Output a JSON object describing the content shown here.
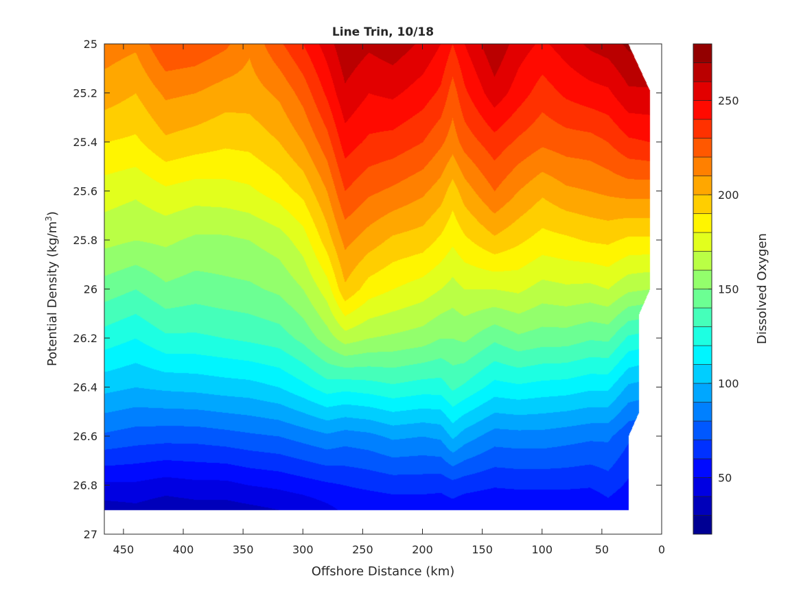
{
  "chart_data": {
    "type": "filled-contour",
    "title": "Line Trin, 10/18",
    "xlabel": "Offshore Distance (km)",
    "ylabel": "Potential Density (kg/m^3)",
    "ylabel_parts": {
      "main": "Potential Density (kg/m",
      "sup": "3",
      "end": ")"
    },
    "xlim": [
      466,
      0
    ],
    "ylim": [
      25,
      27
    ],
    "x_reversed": true,
    "y_reversed": true,
    "xticks": [
      450,
      400,
      350,
      300,
      250,
      200,
      150,
      100,
      50,
      0
    ],
    "yticks": [
      25,
      25.2,
      25.4,
      25.6,
      25.8,
      26,
      26.2,
      26.4,
      26.6,
      26.8,
      27
    ],
    "ytick_labels": [
      "25",
      "25.2",
      "25.4",
      "25.6",
      "25.8",
      "26",
      "26.2",
      "26.4",
      "26.6",
      "26.8",
      "27"
    ],
    "colorbar": {
      "label": "Dissolved Oxygen",
      "clim": [
        20,
        280
      ],
      "level_step": 10,
      "colormap": "jet",
      "ticks": [
        50,
        100,
        150,
        200,
        250
      ]
    },
    "densities": [
      25.0,
      25.2,
      25.4,
      25.6,
      25.8,
      26.0,
      26.2,
      26.4,
      26.6,
      26.8,
      26.9
    ],
    "stations": [
      {
        "x": 465,
        "values": [
          215,
          205,
          190,
          175,
          163,
          145,
          125,
          103,
          78,
          48,
          35
        ]
      },
      {
        "x": 440,
        "values": [
          212,
          200,
          188,
          172,
          160,
          140,
          120,
          100,
          75,
          48,
          37
        ]
      },
      {
        "x": 415,
        "values": [
          230,
          212,
          198,
          178,
          162,
          148,
          128,
          102,
          74,
          45,
          33
        ]
      },
      {
        "x": 390,
        "values": [
          228,
          210,
          195,
          175,
          158,
          145,
          128,
          103,
          74,
          47,
          35
        ]
      },
      {
        "x": 365,
        "values": [
          222,
          205,
          192,
          176,
          158,
          147,
          130,
          105,
          76,
          47,
          35
        ]
      },
      {
        "x": 345,
        "values": [
          212,
          205,
          193,
          178,
          160,
          148,
          132,
          106,
          78,
          50,
          37
        ]
      },
      {
        "x": 320,
        "values": [
          228,
          212,
          200,
          185,
          165,
          152,
          135,
          110,
          80,
          52,
          40
        ]
      },
      {
        "x": 300,
        "values": [
          240,
          224,
          210,
          193,
          175,
          160,
          143,
          117,
          84,
          55,
          42
        ]
      },
      {
        "x": 280,
        "values": [
          255,
          242,
          226,
          210,
          195,
          175,
          155,
          125,
          88,
          58,
          47
        ]
      },
      {
        "x": 265,
        "values": [
          268,
          258,
          245,
          230,
          213,
          198,
          165,
          123,
          85,
          60,
          52
        ]
      },
      {
        "x": 245,
        "values": [
          262,
          250,
          238,
          222,
          205,
          185,
          160,
          125,
          87,
          62,
          52
        ]
      },
      {
        "x": 225,
        "values": [
          266,
          252,
          236,
          218,
          198,
          180,
          158,
          128,
          92,
          64,
          53
        ]
      },
      {
        "x": 200,
        "values": [
          258,
          245,
          230,
          212,
          195,
          175,
          155,
          125,
          90,
          64,
          53
        ]
      },
      {
        "x": 185,
        "values": [
          250,
          238,
          222,
          205,
          188,
          170,
          150,
          125,
          92,
          63,
          53
        ]
      },
      {
        "x": 175,
        "values": [
          240,
          225,
          215,
          195,
          182,
          166,
          150,
          132,
          102,
          66,
          55
        ]
      },
      {
        "x": 165,
        "values": [
          250,
          238,
          224,
          205,
          188,
          170,
          152,
          128,
          95,
          64,
          52
        ]
      },
      {
        "x": 140,
        "values": [
          268,
          256,
          236,
          220,
          198,
          170,
          142,
          116,
          85,
          61,
          50
        ]
      },
      {
        "x": 120,
        "values": [
          255,
          245,
          228,
          210,
          192,
          172,
          148,
          118,
          86,
          62,
          50
        ]
      },
      {
        "x": 100,
        "values": [
          248,
          235,
          222,
          202,
          186,
          166,
          145,
          116,
          86,
          62,
          50
        ]
      },
      {
        "x": 80,
        "values": [
          255,
          242,
          225,
          208,
          188,
          168,
          145,
          115,
          84,
          62,
          50
        ]
      },
      {
        "x": 60,
        "values": [
          262,
          246,
          226,
          210,
          191,
          167,
          141,
          112,
          82,
          61,
          50
        ]
      },
      {
        "x": 45,
        "values": [
          265,
          248,
          230,
          212,
          192,
          170,
          142,
          112,
          82,
          65,
          55
        ]
      },
      {
        "x": 28,
        "values": [
          272,
          258,
          238,
          214,
          188,
          162,
          128,
          98,
          72,
          58,
          50
        ]
      },
      {
        "x": 10,
        "values": [
          275,
          258,
          240,
          214,
          188,
          160,
          125,
          95,
          70,
          55,
          50
        ]
      }
    ],
    "data_boundary": [
      [
        28,
        25.0
      ],
      [
        10,
        25.19
      ],
      [
        10,
        26.0
      ],
      [
        19,
        26.1
      ],
      [
        19,
        26.5
      ],
      [
        28,
        26.6
      ],
      [
        28,
        26.9
      ]
    ]
  }
}
